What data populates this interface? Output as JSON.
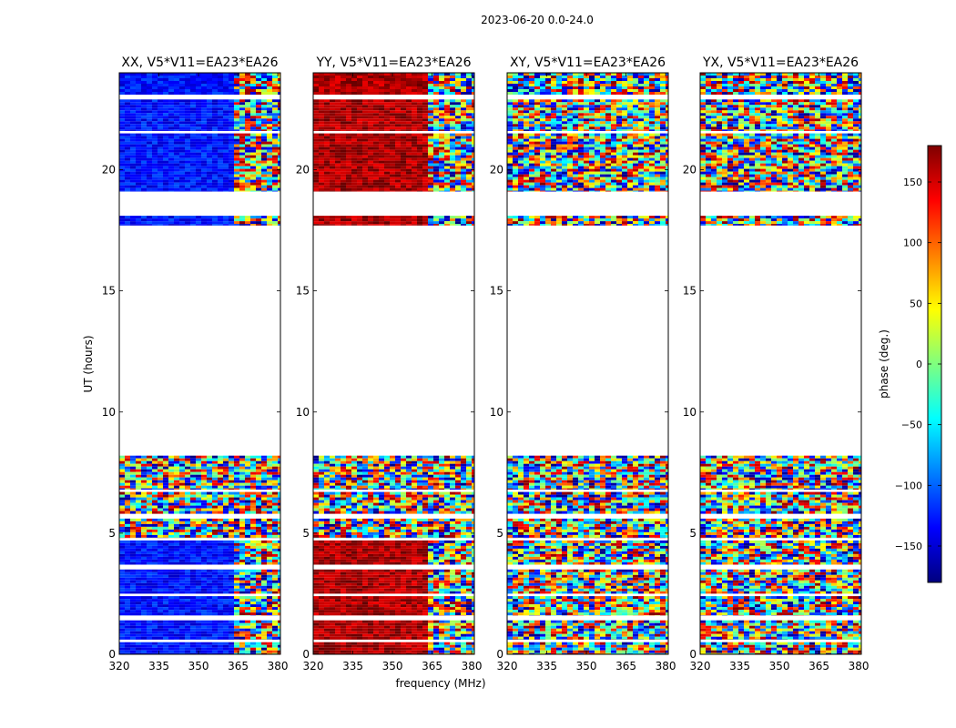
{
  "figure_title": "2023-06-20 0.0-24.0",
  "chart_data": {
    "type": "heatmap",
    "xlabel": "frequency (MHz)",
    "ylabel": "UT (hours)",
    "xlim": [
      320,
      381
    ],
    "ylim": [
      0,
      24
    ],
    "x_ticks": [
      320,
      335,
      350,
      365,
      380
    ],
    "y_ticks": [
      0,
      5,
      10,
      15,
      20
    ],
    "colorbar": {
      "label": "phase (deg.)",
      "range": [
        -180,
        180
      ],
      "ticks": [
        150,
        100,
        50,
        0,
        -50,
        -100,
        -150
      ],
      "tick_labels": [
        "150",
        "100",
        "50",
        "0",
        "−50",
        "−100",
        "−150"
      ],
      "colormap": "jet",
      "colors": [
        "#00007f",
        "#0000ff",
        "#007fff",
        "#00ffff",
        "#7fff7f",
        "#ffff00",
        "#ff7f00",
        "#ff0000",
        "#7f0000"
      ]
    },
    "panels": [
      {
        "title": "XX, V5*V11=EA23*EA26",
        "mode": "coherent",
        "coherent_phase_deg": -130
      },
      {
        "title": "YY, V5*V11=EA23*EA26",
        "mode": "coherent",
        "coherent_phase_deg": 165
      },
      {
        "title": "XY, V5*V11=EA23*EA26",
        "mode": "noise"
      },
      {
        "title": "YX, V5*V11=EA23*EA26",
        "mode": "noise"
      }
    ],
    "data_blocks_ut_hours": [
      [
        0.0,
        0.5
      ],
      [
        0.6,
        1.4
      ],
      [
        1.6,
        2.4
      ],
      [
        2.5,
        3.5
      ],
      [
        3.7,
        4.7
      ],
      [
        4.8,
        5.6
      ],
      [
        5.8,
        6.7
      ],
      [
        6.8,
        8.2
      ],
      [
        17.7,
        18.1
      ],
      [
        19.1,
        21.5
      ],
      [
        21.6,
        22.9
      ],
      [
        23.1,
        24.0
      ]
    ]
  }
}
